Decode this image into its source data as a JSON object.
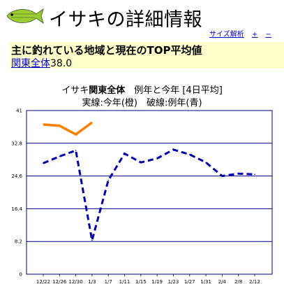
{
  "header": {
    "title": "イサキの詳細情報",
    "links": [
      "サイズ解析",
      "+",
      "−"
    ]
  },
  "summary": {
    "heading": "主に釣れている地域と現在のTOP平均値",
    "region": "関東全体",
    "value": "38.0"
  },
  "chart_title": {
    "fish": "イサキ",
    "region": "関東全体",
    "rest": "　例年と今年 [4日平均]",
    "line2": "実線:今年(橙)　破線:例年(青)"
  },
  "chart_data": {
    "type": "line",
    "categories": [
      "12/22",
      "12/26",
      "12/30",
      "1/3",
      "1/7",
      "1/11",
      "1/15",
      "1/19",
      "1/23",
      "1/27",
      "1/31",
      "2/4",
      "2/8",
      "2/12"
    ],
    "x_labels": [
      "12/22",
      "12/26",
      "12/30",
      "1/3",
      "1/7",
      "1/11",
      "1/15",
      "1/19",
      "1/23",
      "1/27",
      "1/31",
      "2/4",
      "2/8",
      "2/12"
    ],
    "ylim": [
      0,
      41
    ],
    "y_ticks": [
      "0",
      "8.2",
      "16.4",
      "24.6",
      "32.8",
      "41"
    ],
    "grid": true,
    "colors": {
      "this_year": "#ff8000",
      "usual_year": "#0000aa",
      "grid": "#00008b"
    },
    "series": [
      {
        "style": "solid",
        "values": [
          37.5,
          37.2,
          35.0,
          38.0,
          null,
          null,
          null,
          null,
          null,
          null,
          null,
          null,
          null,
          null
        ]
      },
      {
        "style": "dashed",
        "values": [
          27.8,
          29.5,
          31.0,
          8.5,
          23.5,
          30.2,
          28.0,
          29.0,
          31.2,
          30.0,
          28.0,
          24.6,
          25.2,
          25.0
        ]
      }
    ]
  }
}
